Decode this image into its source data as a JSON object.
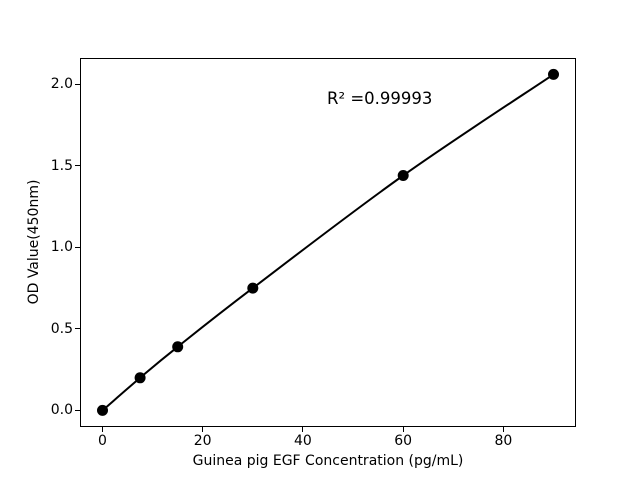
{
  "chart_data": {
    "type": "line",
    "title": "",
    "xlabel": "Guinea pig EGF Concentration (pg/mL)",
    "ylabel": "OD Value(450nm)",
    "annotation": "R² =0.99993",
    "x": [
      0,
      7.5,
      15,
      30,
      60,
      90
    ],
    "y": [
      0.0,
      0.2,
      0.39,
      0.75,
      1.44,
      2.06
    ],
    "xlim": [
      -4.5,
      94.5
    ],
    "ylim": [
      -0.103,
      2.163
    ],
    "xticks": [
      0,
      20,
      40,
      60,
      80
    ],
    "xtick_labels": [
      "0",
      "20",
      "40",
      "60",
      "80"
    ],
    "yticks": [
      0,
      0.5,
      1,
      1.5,
      2
    ],
    "ytick_labels": [
      "0.0",
      "0.5",
      "1.0",
      "1.5",
      "2.0"
    ],
    "grid": false,
    "legend": "none",
    "line_color": "#000000",
    "marker_color": "#000000",
    "background_color": "#ffffff"
  }
}
